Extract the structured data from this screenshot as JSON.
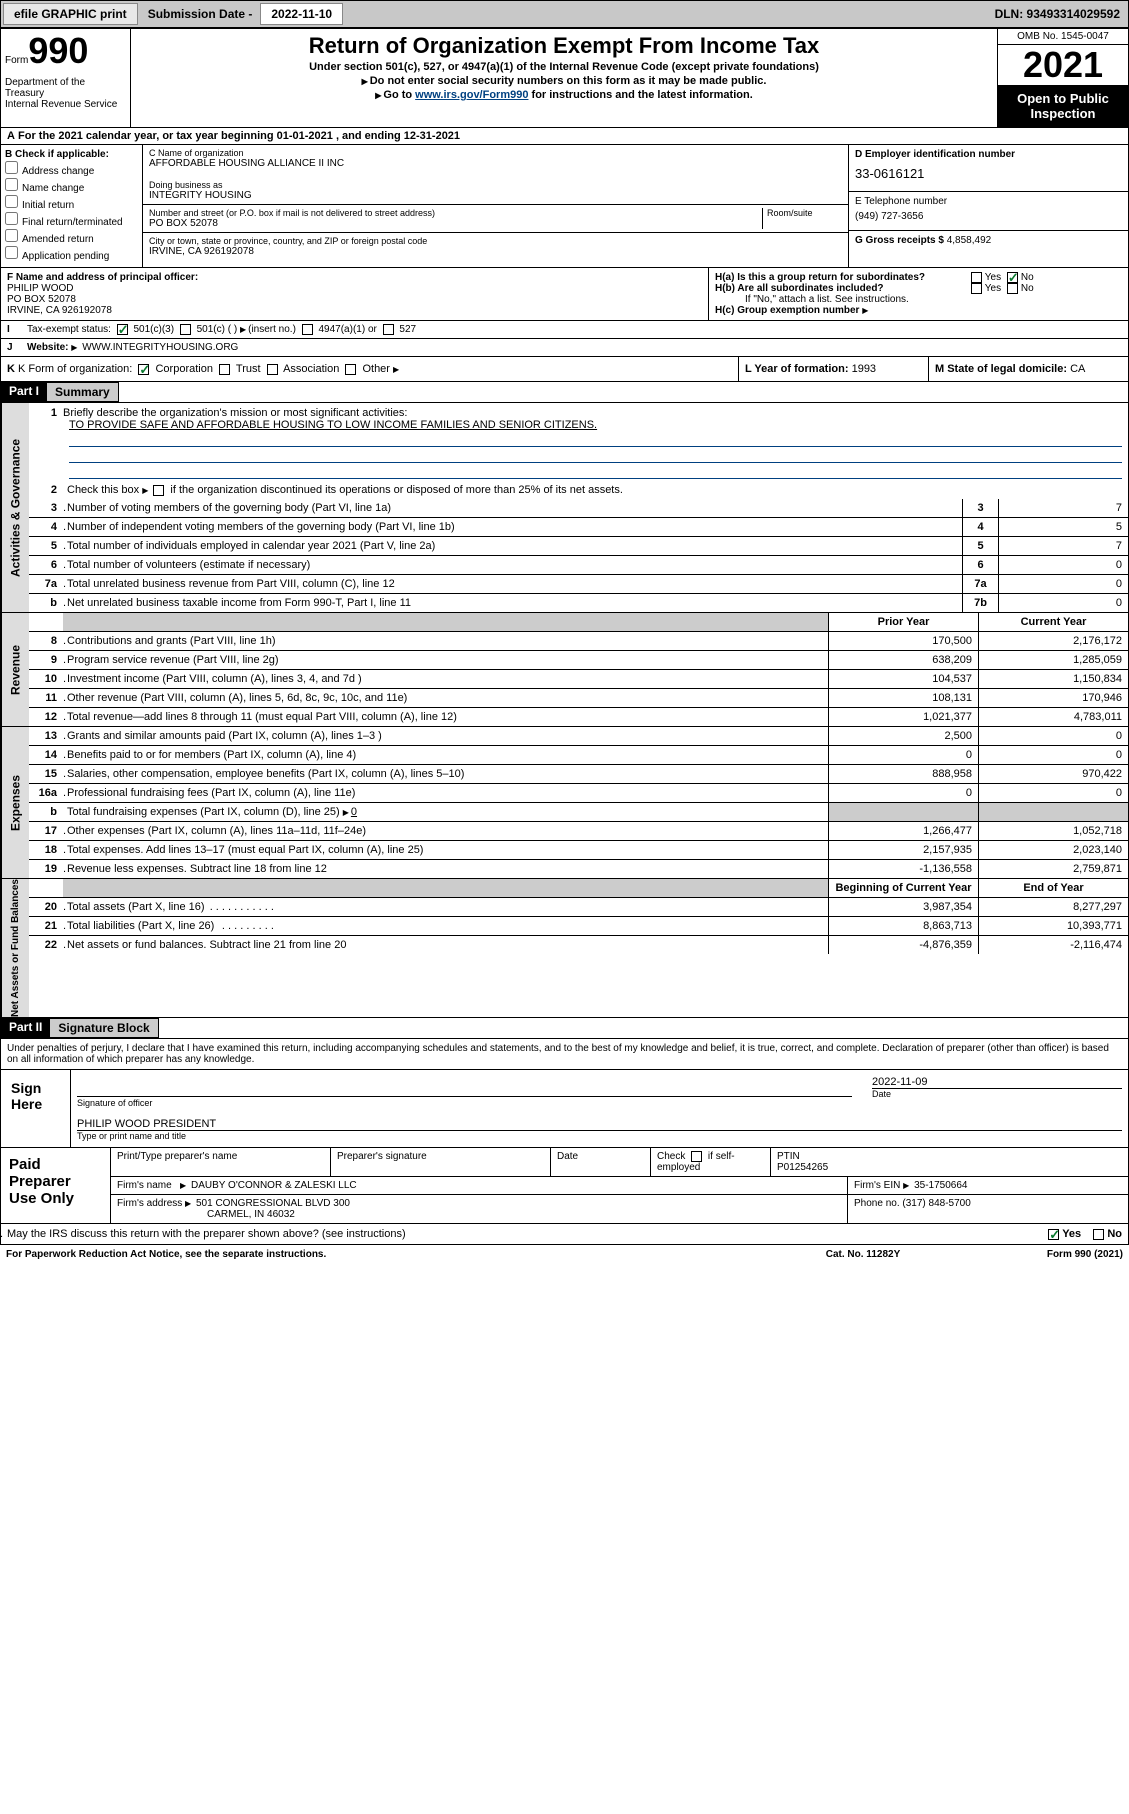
{
  "topbar": {
    "efile": "efile GRAPHIC print",
    "sub_label": "Submission Date - 2022-11-10",
    "dln": "DLN: 93493314029592"
  },
  "header": {
    "form_word": "Form",
    "form_num": "990",
    "dept": "Department of the Treasury",
    "dept2": "Internal Revenue Service",
    "title": "Return of Organization Exempt From Income Tax",
    "sub1": "Under section 501(c), 527, or 4947(a)(1) of the Internal Revenue Code (except private foundations)",
    "sub2": "Do not enter social security numbers on this form as it may be made public.",
    "sub3_pre": "Go to ",
    "sub3_link": "www.irs.gov/Form990",
    "sub3_post": " for instructions and the latest information.",
    "omb": "OMB No. 1545-0047",
    "year": "2021",
    "open": "Open to Public Inspection"
  },
  "a_line": "For the 2021 calendar year, or tax year beginning 01-01-2021   , and ending 12-31-2021",
  "b": {
    "hdr": "B Check if applicable:",
    "items": [
      "Address change",
      "Name change",
      "Initial return",
      "Final return/terminated",
      "Amended return",
      "Application pending"
    ]
  },
  "c": {
    "label": "C Name of organization",
    "name": "AFFORDABLE HOUSING ALLIANCE II INC",
    "dba_label": "Doing business as",
    "dba": "INTEGRITY HOUSING",
    "addr_label": "Number and street (or P.O. box if mail is not delivered to street address)",
    "room": "Room/suite",
    "addr": "PO BOX 52078",
    "city_label": "City or town, state or province, country, and ZIP or foreign postal code",
    "city": "IRVINE, CA  926192078"
  },
  "d": {
    "label": "D Employer identification number",
    "val": "33-0616121"
  },
  "e": {
    "label": "E Telephone number",
    "val": "(949) 727-3656"
  },
  "g": {
    "label": "G Gross receipts $",
    "val": "4,858,492"
  },
  "f": {
    "label": "F  Name and address of principal officer:",
    "name": "PHILIP WOOD",
    "addr": "PO BOX 52078",
    "city": "IRVINE, CA  926192078"
  },
  "h": {
    "a": "H(a)  Is this a group return for subordinates?",
    "b": "H(b)  Are all subordinates included?",
    "b2": "If \"No,\" attach a list. See instructions.",
    "c": "H(c)  Group exemption number",
    "yes": "Yes",
    "no": "No"
  },
  "i": {
    "label": "Tax-exempt status:",
    "opts": [
      "501(c)(3)",
      "501(c) (  )",
      "(insert no.)",
      "4947(a)(1) or",
      "527"
    ]
  },
  "j": {
    "label": "Website:",
    "val": "WWW.INTEGRITYHOUSING.ORG"
  },
  "k": {
    "label": "K Form of organization:",
    "opts": [
      "Corporation",
      "Trust",
      "Association",
      "Other"
    ]
  },
  "l": {
    "label": "L Year of formation:",
    "val": "1993"
  },
  "m": {
    "label": "M State of legal domicile:",
    "val": "CA"
  },
  "part1": {
    "hdr": "Part I",
    "title": "Summary"
  },
  "q1": {
    "num": "1",
    "text": "Briefly describe the organization's mission or most significant activities:",
    "mission": "TO PROVIDE SAFE AND AFFORDABLE HOUSING TO LOW INCOME FAMILIES AND SENIOR CITIZENS."
  },
  "q2": {
    "num": "2",
    "text": "Check this box",
    "text2": " if the organization discontinued its operations or disposed of more than 25% of its net assets."
  },
  "lines_gov": [
    {
      "n": "3",
      "t": "Number of voting members of the governing body (Part VI, line 1a)",
      "box": "3",
      "v": "7"
    },
    {
      "n": "4",
      "t": "Number of independent voting members of the governing body (Part VI, line 1b)",
      "box": "4",
      "v": "5"
    },
    {
      "n": "5",
      "t": "Total number of individuals employed in calendar year 2021 (Part V, line 2a)",
      "box": "5",
      "v": "7"
    },
    {
      "n": "6",
      "t": "Total number of volunteers (estimate if necessary)",
      "box": "6",
      "v": "0"
    },
    {
      "n": "7a",
      "t": "Total unrelated business revenue from Part VIII, column (C), line 12",
      "box": "7a",
      "v": "0"
    },
    {
      "n": "b",
      "t": "Net unrelated business taxable income from Form 990-T, Part I, line 11",
      "box": "7b",
      "v": "0"
    }
  ],
  "colhdr": {
    "prior": "Prior Year",
    "current": "Current Year",
    "boy": "Beginning of Current Year",
    "eoy": "End of Year"
  },
  "lines_rev": [
    {
      "n": "8",
      "t": "Contributions and grants (Part VIII, line 1h)",
      "p": "170,500",
      "c": "2,176,172"
    },
    {
      "n": "9",
      "t": "Program service revenue (Part VIII, line 2g)",
      "p": "638,209",
      "c": "1,285,059"
    },
    {
      "n": "10",
      "t": "Investment income (Part VIII, column (A), lines 3, 4, and 7d )",
      "p": "104,537",
      "c": "1,150,834"
    },
    {
      "n": "11",
      "t": "Other revenue (Part VIII, column (A), lines 5, 6d, 8c, 9c, 10c, and 11e)",
      "p": "108,131",
      "c": "170,946"
    },
    {
      "n": "12",
      "t": "Total revenue—add lines 8 through 11 (must equal Part VIII, column (A), line 12)",
      "p": "1,021,377",
      "c": "4,783,011"
    }
  ],
  "lines_exp": [
    {
      "n": "13",
      "t": "Grants and similar amounts paid (Part IX, column (A), lines 1–3 )",
      "p": "2,500",
      "c": "0"
    },
    {
      "n": "14",
      "t": "Benefits paid to or for members (Part IX, column (A), line 4)",
      "p": "0",
      "c": "0"
    },
    {
      "n": "15",
      "t": "Salaries, other compensation, employee benefits (Part IX, column (A), lines 5–10)",
      "p": "888,958",
      "c": "970,422"
    },
    {
      "n": "16a",
      "t": "Professional fundraising fees (Part IX, column (A), line 11e)",
      "p": "0",
      "c": "0"
    },
    {
      "n": "b",
      "t": "Total fundraising expenses (Part IX, column (D), line 25)",
      "suffix": "0",
      "grey": true
    },
    {
      "n": "17",
      "t": "Other expenses (Part IX, column (A), lines 11a–11d, 11f–24e)",
      "p": "1,266,477",
      "c": "1,052,718"
    },
    {
      "n": "18",
      "t": "Total expenses. Add lines 13–17 (must equal Part IX, column (A), line 25)",
      "p": "2,157,935",
      "c": "2,023,140"
    },
    {
      "n": "19",
      "t": "Revenue less expenses. Subtract line 18 from line 12",
      "p": "-1,136,558",
      "c": "2,759,871"
    }
  ],
  "lines_net": [
    {
      "n": "20",
      "t": "Total assets (Part X, line 16)",
      "p": "3,987,354",
      "c": "8,277,297"
    },
    {
      "n": "21",
      "t": "Total liabilities (Part X, line 26)",
      "p": "8,863,713",
      "c": "10,393,771"
    },
    {
      "n": "22",
      "t": "Net assets or fund balances. Subtract line 21 from line 20",
      "p": "-4,876,359",
      "c": "-2,116,474"
    }
  ],
  "tabs": {
    "gov": "Activities & Governance",
    "rev": "Revenue",
    "exp": "Expenses",
    "net": "Net Assets or Fund Balances"
  },
  "part2": {
    "hdr": "Part II",
    "title": "Signature Block"
  },
  "decl": "Under penalties of perjury, I declare that I have examined this return, including accompanying schedules and statements, and to the best of my knowledge and belief, it is true, correct, and complete. Declaration of preparer (other than officer) is based on all information of which preparer has any knowledge.",
  "sign": {
    "here": "Sign Here",
    "sig_officer": "Signature of officer",
    "date_label": "Date",
    "date": "2022-11-09",
    "name": "PHILIP WOOD PRESIDENT",
    "name_label": "Type or print name and title"
  },
  "prep": {
    "label": "Paid Preparer Use Only",
    "h1": "Print/Type preparer's name",
    "h2": "Preparer's signature",
    "h3": "Date",
    "h4": "Check",
    "h4b": "if self-employed",
    "h5": "PTIN",
    "ptin": "P01254265",
    "firm_label": "Firm's name",
    "firm": "DAUBY O'CONNOR & ZALESKI LLC",
    "ein_label": "Firm's EIN",
    "ein": "35-1750664",
    "addr_label": "Firm's address",
    "addr": "501 CONGRESSIONAL BLVD 300",
    "city": "CARMEL, IN  46032",
    "phone_label": "Phone no.",
    "phone": "(317) 848-5700"
  },
  "discuss": {
    "q": "May the IRS discuss this return with the preparer shown above? (see instructions)",
    "yes": "Yes",
    "no": "No"
  },
  "footer": {
    "left": "For Paperwork Reduction Act Notice, see the separate instructions.",
    "mid": "Cat. No. 11282Y",
    "right": "Form 990 (2021)"
  }
}
